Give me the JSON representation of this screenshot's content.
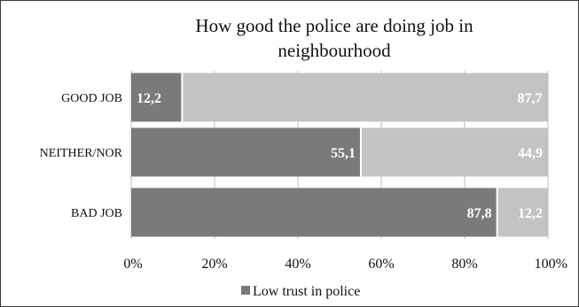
{
  "chart_data": {
    "type": "bar",
    "orientation": "horizontal",
    "stacked": "100%",
    "title": "How good the police are doing  job in neighbourhood",
    "title_lines": [
      "How good the police are doing  job in",
      "neighbourhood"
    ],
    "categories": [
      "GOOD JOB",
      "NEITHER/NOR",
      "BAD JOB"
    ],
    "series": [
      {
        "name": "Low trust in police",
        "values": [
          12.2,
          55.1,
          87.8
        ],
        "labels": [
          "12,2",
          "55,1",
          "87,8"
        ],
        "color": "#7a7a7a"
      },
      {
        "name": "",
        "values": [
          87.7,
          44.9,
          12.2
        ],
        "labels": [
          "87,7",
          "44,9",
          "12,2"
        ],
        "color": "#c3c3c3"
      }
    ],
    "x_ticks": [
      "0%",
      "20%",
      "40%",
      "60%",
      "80%",
      "100%"
    ],
    "xlim": [
      0,
      100
    ],
    "grid": "vertical",
    "legend": {
      "position": "bottom",
      "entries": [
        "Low trust in police"
      ]
    }
  }
}
